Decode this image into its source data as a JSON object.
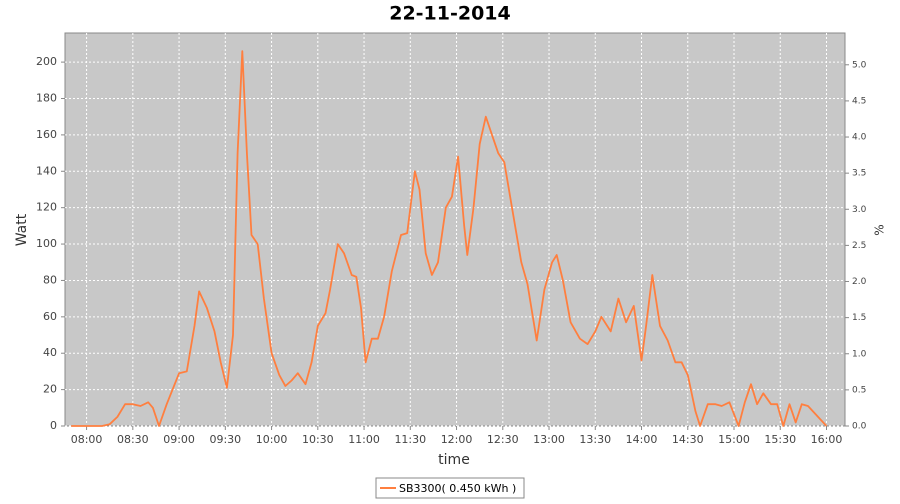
{
  "chart_data": {
    "type": "line",
    "title": "22-11-2014",
    "x_label": "time",
    "y_label": "Watt",
    "y2_label": "%",
    "x": [
      "07:50",
      "08:00",
      "08:10",
      "08:15",
      "08:20",
      "08:25",
      "08:30",
      "08:35",
      "08:40",
      "08:43",
      "08:47",
      "08:52",
      "09:00",
      "09:05",
      "09:10",
      "09:13",
      "09:18",
      "09:23",
      "09:27",
      "09:31",
      "09:35",
      "09:38",
      "09:41",
      "09:44",
      "09:47",
      "09:51",
      "09:55",
      "10:00",
      "10:05",
      "10:09",
      "10:13",
      "10:17",
      "10:22",
      "10:26",
      "10:30",
      "10:35",
      "10:38",
      "10:43",
      "10:47",
      "10:52",
      "10:55",
      "10:58",
      "11:01",
      "11:05",
      "11:09",
      "11:13",
      "11:18",
      "11:24",
      "11:28",
      "11:33",
      "11:36",
      "11:40",
      "11:44",
      "11:48",
      "11:53",
      "11:57",
      "12:01",
      "12:05",
      "12:07",
      "12:11",
      "12:15",
      "12:19",
      "12:23",
      "12:27",
      "12:31",
      "12:36",
      "12:42",
      "12:46",
      "12:52",
      "12:57",
      "13:02",
      "13:05",
      "13:09",
      "13:14",
      "13:20",
      "13:25",
      "13:30",
      "13:34",
      "13:40",
      "13:45",
      "13:50",
      "13:55",
      "14:00",
      "14:03",
      "14:07",
      "14:12",
      "14:17",
      "14:22",
      "14:26",
      "14:30",
      "14:35",
      "14:38",
      "14:43",
      "14:48",
      "14:52",
      "14:57",
      "15:03",
      "15:07",
      "15:11",
      "15:15",
      "15:19",
      "15:24",
      "15:28",
      "15:32",
      "15:36",
      "15:40",
      "15:44",
      "15:48",
      "16:00"
    ],
    "series": [
      {
        "name": "SB3300( 0.450 kWh )",
        "color": "#ff7f3f",
        "values": [
          0,
          0,
          0,
          1,
          5,
          12,
          12,
          11,
          13,
          10,
          0,
          12,
          29,
          30,
          55,
          74,
          65,
          52,
          35,
          21,
          50,
          150,
          206,
          150,
          105,
          100,
          70,
          40,
          28,
          22,
          25,
          29,
          23,
          35,
          55,
          62,
          75,
          100,
          95,
          83,
          82,
          65,
          35,
          48,
          48,
          60,
          85,
          105,
          106,
          140,
          130,
          95,
          83,
          90,
          120,
          126,
          148,
          110,
          94,
          120,
          155,
          170,
          160,
          150,
          145,
          120,
          90,
          78,
          47,
          75,
          90,
          94,
          80,
          57,
          48,
          45,
          52,
          60,
          52,
          70,
          57,
          66,
          36,
          55,
          83,
          55,
          47,
          35,
          35,
          28,
          8,
          0,
          12,
          12,
          11,
          13,
          0,
          13,
          23,
          12,
          18,
          12,
          12,
          0,
          12,
          2,
          12,
          11,
          0
        ]
      }
    ],
    "xlim": [
      "07:46",
      "16:12"
    ],
    "xticks": [
      "08:00",
      "08:30",
      "09:00",
      "09:30",
      "10:00",
      "10:30",
      "11:00",
      "11:30",
      "12:00",
      "12:30",
      "13:00",
      "13:30",
      "14:00",
      "14:30",
      "15:00",
      "15:30",
      "16:00"
    ],
    "ylim": [
      0,
      216
    ],
    "yticks": [
      0,
      20,
      40,
      60,
      80,
      100,
      120,
      140,
      160,
      180,
      200
    ],
    "y2lim": [
      0,
      5.44
    ],
    "y2ticks": [
      {
        "value": 0,
        "label": "0.0"
      },
      0.5,
      {
        "value": 1,
        "label": "1.0"
      },
      1.5,
      {
        "value": 2,
        "label": "2.0"
      },
      2.5,
      {
        "value": 3,
        "label": "3.0"
      },
      3.5,
      {
        "value": 4,
        "label": "4.0"
      },
      4.5,
      {
        "value": 5,
        "label": "5.0"
      }
    ],
    "grid": true
  }
}
